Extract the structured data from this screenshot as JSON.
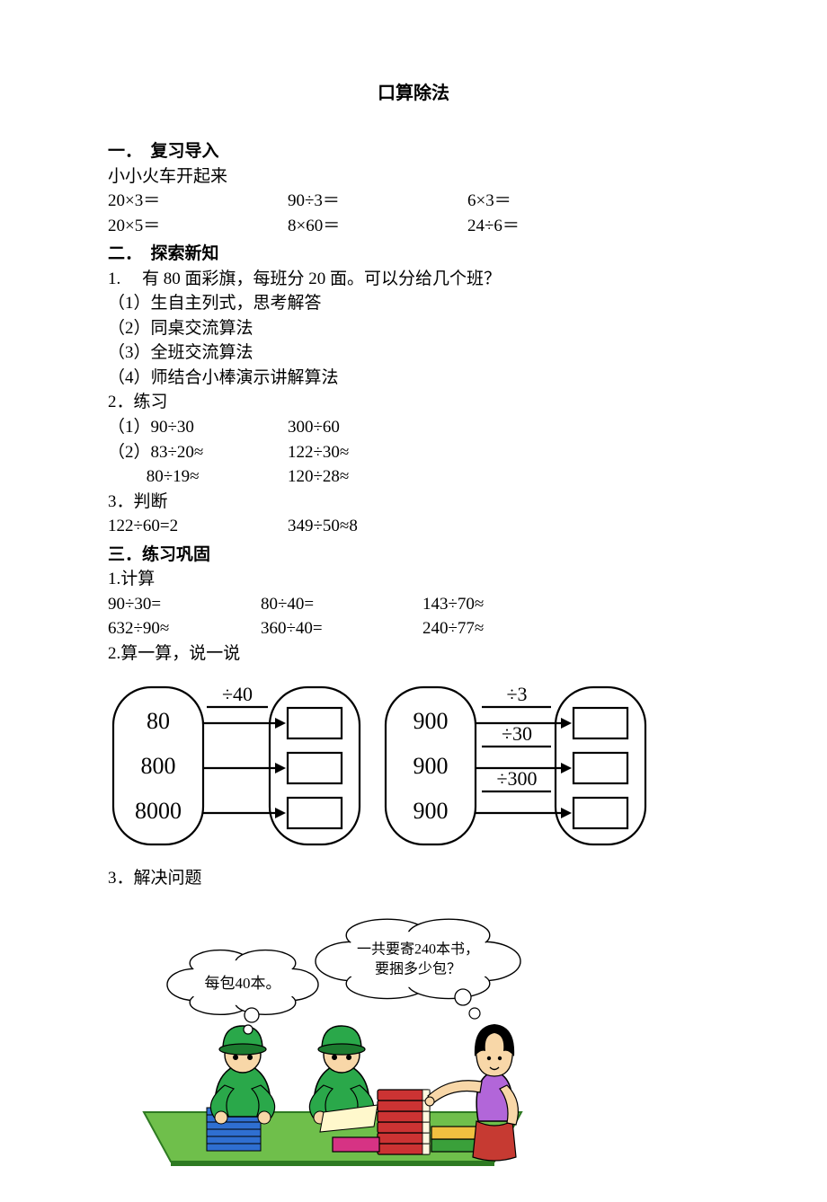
{
  "title": "口算除法",
  "sec1": {
    "heading": "一．　复习导入",
    "sub": "小小火车开起来",
    "row1": {
      "a": "20×3＝",
      "b": "90÷3＝",
      "c": "6×3＝"
    },
    "row2": {
      "a": "20×5＝",
      "b": "8×60＝",
      "c": "24÷6＝"
    }
  },
  "sec2": {
    "heading": "二．　探索新知",
    "q1": "1.　 有 80 面彩旗，每班分 20 面。可以分给几个班？",
    "q1a": "（1）生自主列式，思考解答",
    "q1b": "（2）同桌交流算法",
    "q1c": "（3）全班交流算法",
    "q1d": "（4）师结合小棒演示讲解算法",
    "q2": "2．练习",
    "p1a": "（1）90÷30",
    "p1b": "300÷60",
    "p2a": "（2）83÷20≈",
    "p2b": "122÷30≈",
    "p3a": "　　 80÷19≈",
    "p3b": "120÷28≈",
    "q3": "3．判断",
    "j1": "122÷60=2",
    "j2": "349÷50≈8"
  },
  "sec3": {
    "heading": "三．练习巩固",
    "q1": "1.计算",
    "r1a": "90÷30=",
    "r1b": "80÷40=",
    "r1c": "143÷70≈",
    "r2a": "632÷90≈",
    "r2b": "360÷40=",
    "r2c": "240÷77≈",
    "q2": "2.算一算，说一说",
    "q3": "3．解决问题"
  },
  "diagramA": {
    "inputs": [
      "80",
      "800",
      "8000"
    ],
    "op": "÷40"
  },
  "diagramB": {
    "inputs": [
      "900",
      "900",
      "900"
    ],
    "ops": [
      "÷3",
      "÷30",
      "÷300"
    ]
  },
  "illustration": {
    "bubble_left": "每包40本。",
    "bubble_right_l1": "一共要寄240本书，",
    "bubble_right_l2": "要捆多少包？",
    "colors": {
      "green_shirt": "#2aa84a",
      "dark_green": "#1c7a2f",
      "skin": "#f8d7a8",
      "skin_shadow": "#e0b77e",
      "hair": "#3a2a1a",
      "woman_hair": "#000000",
      "woman_top": "#b266d9",
      "woman_skirt": "#c63a32",
      "table": "#6fbf4b",
      "table_edge": "#2e7a22",
      "book_yellow": "#f0c040",
      "book_red": "#cc3333",
      "book_magenta": "#d63384",
      "book_green": "#3aa03a",
      "book_blue": "#2f6fd1",
      "paper": "#fff8cc",
      "outline": "#000000",
      "bubble_fill": "#ffffff"
    }
  },
  "style": {
    "stroke": "#000000",
    "stroke_width": 2.2,
    "font_family": "SimSun",
    "diagram_font_size": 26,
    "op_font_size": 22
  }
}
